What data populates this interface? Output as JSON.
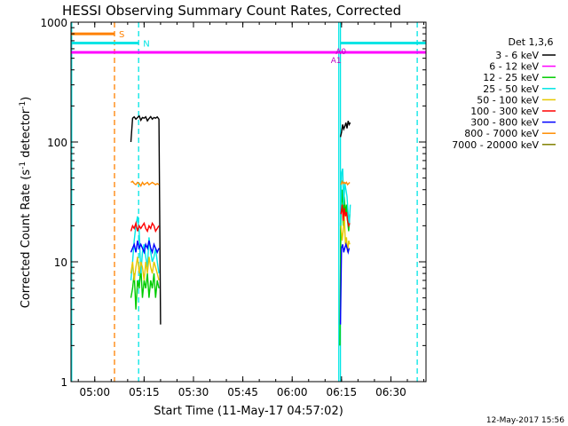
{
  "chart_data": {
    "type": "line",
    "title": "HESSI Observing Summary Count Rates, Corrected",
    "xlabel": "Start Time (11-May-17 04:57:02)",
    "ylabel": "Corrected Count Rate (s",
    "ylabel_sup1": "-1",
    "ylabel_mid": " detector",
    "ylabel_sup2": "-1",
    "ylabel_end": ")",
    "date_stamp": "12-May-2017 15:56",
    "x_ticks": [
      {
        "label": "05:00",
        "min": 300
      },
      {
        "label": "05:15",
        "min": 1200
      },
      {
        "label": "05:30",
        "min": 2100
      },
      {
        "label": "05:45",
        "min": 3000
      },
      {
        "label": "06:00",
        "min": 3900
      },
      {
        "label": "06:15",
        "min": 4800
      },
      {
        "label": "06:30",
        "min": 5700
      }
    ],
    "xlim_seconds_from_start": [
      -133,
      6340
    ],
    "ylim": [
      1,
      1000
    ],
    "y_scale": "log",
    "y_ticks": [
      {
        "label": "1",
        "value": 1
      },
      {
        "label": "10",
        "value": 10
      },
      {
        "label": "100",
        "value": 100
      },
      {
        "label": "1000",
        "value": 1000
      }
    ],
    "legend": {
      "title": "Det 1,3,6",
      "placement": "right",
      "entries": [
        {
          "label": "3 - 6 keV",
          "color": "#000000"
        },
        {
          "label": "6 - 12 keV",
          "color": "#ff00ff"
        },
        {
          "label": "12 - 25 keV",
          "color": "#00cc00"
        },
        {
          "label": "25 - 50 keV",
          "color": "#00e5e5"
        },
        {
          "label": "50 - 100 keV",
          "color": "#e6c800"
        },
        {
          "label": "100 - 300 keV",
          "color": "#ff0000"
        },
        {
          "label": "300 - 800 keV",
          "color": "#0000ff"
        },
        {
          "label": "800 - 7000 keV",
          "color": "#ff8c00"
        },
        {
          "label": "7000 - 20000 keV",
          "color": "#808000"
        }
      ]
    },
    "status_bars": [
      {
        "label": "S",
        "color": "#ff8000",
        "y": 800,
        "segments": [
          [
            -133,
            660
          ]
        ]
      },
      {
        "label": "N",
        "color": "#00e5e5",
        "y": 670,
        "segments": [
          [
            -133,
            1100
          ],
          [
            4780,
            6340
          ]
        ]
      },
      {
        "label": "",
        "color": "#ff00ff",
        "y": 560,
        "segments": [
          [
            -133,
            6340
          ]
        ]
      }
    ],
    "annotations": [
      {
        "label": "A1",
        "color": "#c000c0",
        "x": 4700,
        "y": 490
      },
      {
        "label": "A0",
        "color": "#c000c0",
        "x": 4790,
        "y": 580
      }
    ],
    "vertical_markers": [
      {
        "x": 660,
        "color": "#ff8000",
        "style": "dashed"
      },
      {
        "x": 1100,
        "color": "#00e5e5",
        "style": "dashed"
      },
      {
        "x": 4750,
        "color": "#00e5e5",
        "style": "solid"
      },
      {
        "x": 4780,
        "color": "#00e5e5",
        "style": "solid"
      },
      {
        "x": 6180,
        "color": "#00e5e5",
        "style": "dashed"
      },
      {
        "x": -120,
        "color": "#00e5e5",
        "style": "solid"
      }
    ],
    "series": [
      {
        "name": "3 - 6 keV",
        "color": "#000000",
        "segments": [
          {
            "x": [
              960,
              990,
              1020,
              1050,
              1080,
              1110,
              1140,
              1170,
              1200,
              1230,
              1260,
              1290,
              1320,
              1350,
              1380,
              1410,
              1440,
              1470,
              1500
            ],
            "y": [
              100,
              158,
              162,
              155,
              160,
              165,
              152,
              160,
              158,
              162,
              150,
              157,
              163,
              155,
              160,
              158,
              162,
              155,
              3
            ]
          },
          {
            "x": [
              4780,
              4800,
              4820,
              4840,
              4860,
              4880,
              4900,
              4920,
              4940,
              4960
            ],
            "y": [
              110,
              120,
              140,
              128,
              135,
              145,
              130,
              150,
              140,
              145
            ]
          }
        ]
      },
      {
        "name": "6 - 12 keV",
        "color": "#ff00ff",
        "segments": []
      },
      {
        "name": "12 - 25 keV",
        "color": "#00cc00",
        "segments": [
          {
            "x": [
              960,
              990,
              1020,
              1050,
              1080,
              1110,
              1140,
              1170,
              1200,
              1230,
              1260,
              1290,
              1320,
              1350,
              1380,
              1410,
              1440,
              1470
            ],
            "y": [
              5,
              6,
              8,
              4,
              7,
              6,
              9,
              5,
              7,
              6,
              8,
              5,
              7,
              6,
              8,
              5,
              7,
              6
            ]
          },
          {
            "x": [
              4770,
              4790,
              4810,
              4830,
              4850,
              4870,
              4890,
              4910,
              4930,
              4950
            ],
            "y": [
              2,
              30,
              40,
              20,
              35,
              25,
              30,
              22,
              18,
              25
            ]
          }
        ]
      },
      {
        "name": "25 - 50 keV",
        "color": "#00e5e5",
        "segments": [
          {
            "x": [
              960,
              990,
              1020,
              1050,
              1080,
              1110,
              1140,
              1170,
              1200,
              1230,
              1260,
              1290,
              1320,
              1350,
              1380,
              1410,
              1440,
              1470
            ],
            "y": [
              7,
              10,
              15,
              20,
              24,
              18,
              8,
              12,
              14,
              11,
              9,
              16,
              12,
              10,
              11,
              13,
              10,
              8
            ]
          },
          {
            "x": [
              4780,
              4800,
              4820,
              4840,
              4860,
              4880,
              4900,
              4920,
              4940,
              4960
            ],
            "y": [
              20,
              55,
              60,
              30,
              45,
              40,
              35,
              25,
              20,
              30
            ]
          }
        ]
      },
      {
        "name": "50 - 100 keV",
        "color": "#e6c800",
        "segments": [
          {
            "x": [
              960,
              990,
              1020,
              1050,
              1080,
              1110,
              1140,
              1170,
              1200,
              1230,
              1260,
              1290,
              1320,
              1350,
              1380,
              1410,
              1440,
              1470
            ],
            "y": [
              8,
              10,
              7,
              9,
              11,
              8,
              10,
              9,
              7,
              10,
              8,
              11,
              9,
              8,
              10,
              9,
              8,
              7
            ]
          },
          {
            "x": [
              4790,
              4810,
              4830,
              4850,
              4870,
              4890,
              4910,
              4930,
              4950
            ],
            "y": [
              20,
              15,
              18,
              25,
              14,
              16,
              12,
              15,
              14
            ]
          }
        ]
      },
      {
        "name": "100 - 300 keV",
        "color": "#ff0000",
        "segments": [
          {
            "x": [
              960,
              990,
              1020,
              1050,
              1080,
              1110,
              1140,
              1170,
              1200,
              1230,
              1260,
              1290,
              1320,
              1350,
              1380,
              1410,
              1440,
              1470
            ],
            "y": [
              18,
              20,
              19,
              21,
              18,
              20,
              19,
              20,
              21,
              19,
              18,
              20,
              19,
              21,
              20,
              18,
              19,
              20
            ]
          },
          {
            "x": [
              4790,
              4810,
              4830,
              4850,
              4870,
              4890,
              4910,
              4930,
              4950
            ],
            "y": [
              25,
              30,
              22,
              28,
              24,
              26,
              22,
              20,
              21
            ]
          }
        ]
      },
      {
        "name": "300 - 800 keV",
        "color": "#0000ff",
        "segments": [
          {
            "x": [
              960,
              990,
              1020,
              1050,
              1080,
              1110,
              1140,
              1170,
              1200,
              1230,
              1260,
              1290,
              1320,
              1350,
              1380,
              1410,
              1440,
              1470
            ],
            "y": [
              12,
              13,
              14,
              12,
              15,
              13,
              14,
              13,
              12,
              14,
              13,
              15,
              13,
              12,
              14,
              13,
              12,
              13
            ]
          },
          {
            "x": [
              4780,
              4800,
              4820,
              4840,
              4860,
              4880,
              4900,
              4920,
              4940
            ],
            "y": [
              3,
              13,
              14,
              12,
              13,
              14,
              13,
              12,
              13
            ]
          }
        ]
      },
      {
        "name": "800 - 7000 keV",
        "color": "#ff8c00",
        "segments": [
          {
            "x": [
              960,
              990,
              1020,
              1050,
              1080,
              1110,
              1140,
              1170,
              1200,
              1230,
              1260,
              1290,
              1320,
              1350,
              1380,
              1410,
              1440,
              1470
            ],
            "y": [
              46,
              47,
              45,
              44,
              46,
              45,
              43,
              46,
              44,
              45,
              46,
              44,
              45,
              46,
              45,
              44,
              45,
              44
            ]
          },
          {
            "x": [
              4790,
              4810,
              4830,
              4850,
              4870,
              4890,
              4910,
              4930,
              4950
            ],
            "y": [
              44,
              47,
              45,
              46,
              45,
              46,
              44,
              45,
              46
            ]
          }
        ]
      },
      {
        "name": "7000 - 20000 keV",
        "color": "#808000",
        "segments": []
      }
    ]
  }
}
